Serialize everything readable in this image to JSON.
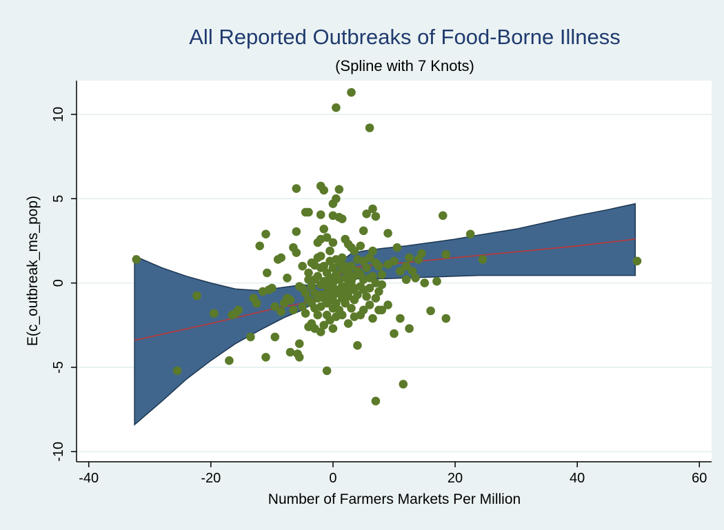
{
  "chart_data": {
    "type": "scatter",
    "title": "All Reported Outbreaks of Food-Borne Illness",
    "subtitle": "(Spline with 7 Knots)",
    "xlabel": "Number of Farmers Markets Per Million",
    "ylabel": "E(c_outbreak_ms_pop)",
    "xlim": [
      -42,
      62
    ],
    "ylim": [
      -10.6,
      12.0
    ],
    "xticks": [
      -40,
      -20,
      0,
      20,
      40,
      60
    ],
    "yticks": [
      -10,
      -5,
      0,
      5,
      10
    ],
    "grid": "horizontal",
    "colors": {
      "background": "#eaf2f3",
      "plot_background": "#ffffff",
      "grid": "#e9f1f2",
      "points": "#5b7a2a",
      "band_fill": "#40668e",
      "band_stroke": "#1c3650",
      "fit_line": "#b23a3a"
    },
    "confidence_band": {
      "x": [
        -32.5,
        -28,
        -24,
        -20,
        -16,
        -12,
        -8,
        -5,
        -3,
        -1,
        0,
        1,
        3,
        5,
        8,
        12,
        16,
        20,
        24,
        30,
        35,
        40,
        45,
        49.5
      ],
      "upper": [
        1.6,
        0.9,
        0.4,
        0.0,
        -0.35,
        -0.45,
        -0.25,
        -0.1,
        -0.15,
        0.1,
        0.6,
        1.2,
        1.75,
        1.9,
        2.05,
        2.2,
        2.4,
        2.6,
        2.85,
        3.2,
        3.6,
        4.0,
        4.35,
        4.7
      ],
      "lower": [
        -8.4,
        -7.0,
        -5.7,
        -4.6,
        -3.6,
        -2.8,
        -2.05,
        -1.6,
        -1.15,
        -0.6,
        -0.1,
        0.2,
        0.25,
        0.25,
        0.25,
        0.3,
        0.35,
        0.4,
        0.45,
        0.45,
        0.45,
        0.45,
        0.45,
        0.45
      ]
    },
    "fit_line": {
      "x": [
        -32.5,
        -20,
        -10,
        -5,
        -2,
        0,
        2,
        5,
        10,
        20,
        30,
        40,
        49.5
      ],
      "y": [
        -3.4,
        -2.4,
        -1.55,
        -1.2,
        -0.8,
        0.0,
        0.85,
        1.0,
        1.15,
        1.5,
        1.85,
        2.2,
        2.6
      ]
    },
    "points": [
      [
        -32.2,
        1.4
      ],
      [
        -25.5,
        -5.2
      ],
      [
        -22.3,
        -0.75
      ],
      [
        -19.5,
        -1.8
      ],
      [
        -17,
        -4.6
      ],
      [
        -16.5,
        -1.9
      ],
      [
        -16,
        -1.8
      ],
      [
        -15.5,
        -1.6
      ],
      [
        -13.5,
        -3.2
      ],
      [
        -13,
        -0.9
      ],
      [
        -12.5,
        -1.2
      ],
      [
        -12,
        2.2
      ],
      [
        -11.5,
        -0.5
      ],
      [
        -11,
        -4.4
      ],
      [
        -11,
        2.9
      ],
      [
        -10.8,
        0.6
      ],
      [
        -10.5,
        -0.4
      ],
      [
        -10,
        -0.3
      ],
      [
        -9.5,
        -1.4
      ],
      [
        -9.5,
        -3.2
      ],
      [
        -9,
        1.4
      ],
      [
        -8.5,
        1.5
      ],
      [
        -8.5,
        -1.7
      ],
      [
        -8,
        -1.2
      ],
      [
        -7.5,
        0.3
      ],
      [
        -7.5,
        -0.9
      ],
      [
        -7,
        -4.1
      ],
      [
        -7,
        -1.0
      ],
      [
        -6.5,
        2.1
      ],
      [
        -6.5,
        -1.6
      ],
      [
        -6,
        1.8
      ],
      [
        -6,
        3.05
      ],
      [
        -6,
        5.6
      ],
      [
        -5.8,
        -4.2
      ],
      [
        -5.5,
        -4.4
      ],
      [
        -5.5,
        -0.2
      ],
      [
        -5.5,
        -3.6
      ],
      [
        -5,
        1.0
      ],
      [
        -5,
        -0.3
      ],
      [
        -5,
        -1.4
      ],
      [
        -4.5,
        -0.6
      ],
      [
        -4.5,
        4.2
      ],
      [
        -4.5,
        -1.8
      ],
      [
        -4,
        4.2
      ],
      [
        -4,
        0.6
      ],
      [
        -4,
        0.2
      ],
      [
        -4,
        -1.0
      ],
      [
        -4,
        -2.6
      ],
      [
        -3.5,
        1.2
      ],
      [
        -3.5,
        -0.2
      ],
      [
        -3.5,
        -1.2
      ],
      [
        -3.5,
        -2.4
      ],
      [
        -3,
        1.05
      ],
      [
        -3,
        0.2
      ],
      [
        -3,
        -0.6
      ],
      [
        -3,
        -1.5
      ],
      [
        -3,
        -2.7
      ],
      [
        -2.5,
        1.5
      ],
      [
        -2.5,
        2.4
      ],
      [
        -2.5,
        0.4
      ],
      [
        -2.5,
        -0.9
      ],
      [
        -2.5,
        -1.9
      ],
      [
        -2,
        5.75
      ],
      [
        -2,
        2.6
      ],
      [
        -2,
        4.05
      ],
      [
        -2,
        1.6
      ],
      [
        -2,
        0.9
      ],
      [
        -2,
        -0.1
      ],
      [
        -2,
        -0.7
      ],
      [
        -2,
        -1.4
      ],
      [
        -2,
        -2.9
      ],
      [
        -1.5,
        5.5
      ],
      [
        -1.5,
        3.2
      ],
      [
        -1.5,
        1.0
      ],
      [
        -1.5,
        0.1
      ],
      [
        -1.5,
        -0.9
      ],
      [
        -1.5,
        -2.5
      ],
      [
        -1,
        2.7
      ],
      [
        -1,
        0.6
      ],
      [
        -1,
        -0.2
      ],
      [
        -1,
        -0.6
      ],
      [
        -1,
        -1.2
      ],
      [
        -1,
        -1.9
      ],
      [
        -1,
        -5.2
      ],
      [
        -0.5,
        1.9
      ],
      [
        -0.5,
        1.3
      ],
      [
        -0.5,
        0.3
      ],
      [
        -0.5,
        -0.5
      ],
      [
        -0.5,
        -1.0
      ],
      [
        -0.5,
        -2.2
      ],
      [
        0,
        4.7
      ],
      [
        0,
        4.0
      ],
      [
        0,
        2.4
      ],
      [
        0,
        0.9
      ],
      [
        0,
        0.0
      ],
      [
        0,
        -0.3
      ],
      [
        0,
        -0.8
      ],
      [
        0,
        -1.5
      ],
      [
        0,
        -2.7
      ],
      [
        0.5,
        10.4
      ],
      [
        0.5,
        5.0
      ],
      [
        0.5,
        1.4
      ],
      [
        0.5,
        0.5
      ],
      [
        0.5,
        -0.4
      ],
      [
        0.5,
        -1.2
      ],
      [
        0.5,
        -2.0
      ],
      [
        1,
        5.55
      ],
      [
        1,
        3.9
      ],
      [
        1,
        1.2
      ],
      [
        1,
        0.2
      ],
      [
        1,
        -0.6
      ],
      [
        1,
        -1.6
      ],
      [
        1.5,
        3.8
      ],
      [
        1.5,
        1.5
      ],
      [
        1.5,
        0.8
      ],
      [
        1.5,
        -0.2
      ],
      [
        1.5,
        -0.9
      ],
      [
        1.5,
        -1.9
      ],
      [
        2,
        2.6
      ],
      [
        2,
        1.0
      ],
      [
        2,
        0.3
      ],
      [
        2,
        -0.5
      ],
      [
        2,
        -1.2
      ],
      [
        2.5,
        2.3
      ],
      [
        2.5,
        0.6
      ],
      [
        2.5,
        -0.1
      ],
      [
        2.5,
        -0.8
      ],
      [
        2.5,
        -2.4
      ],
      [
        3,
        11.3
      ],
      [
        3,
        2.1
      ],
      [
        3,
        1.0
      ],
      [
        3,
        0.1
      ],
      [
        3,
        -0.4
      ],
      [
        3,
        -1.5
      ],
      [
        3.5,
        1.9
      ],
      [
        3.5,
        0.4
      ],
      [
        3.5,
        -0.3
      ],
      [
        3.5,
        -1.0
      ],
      [
        3.5,
        -2.0
      ],
      [
        4,
        1.4
      ],
      [
        4,
        0.7
      ],
      [
        4,
        -0.7
      ],
      [
        4,
        -3.7
      ],
      [
        4.5,
        2.2
      ],
      [
        4.5,
        0.5
      ],
      [
        4.5,
        -0.2
      ],
      [
        4.5,
        -1.9
      ],
      [
        5,
        3.1
      ],
      [
        5,
        1.3
      ],
      [
        5,
        0.2
      ],
      [
        5,
        -0.4
      ],
      [
        5,
        -1.6
      ],
      [
        5.5,
        4.1
      ],
      [
        5.5,
        0.9
      ],
      [
        5.5,
        -0.8
      ],
      [
        6,
        9.2
      ],
      [
        6,
        1.5
      ],
      [
        6,
        0.3
      ],
      [
        6,
        -0.3
      ],
      [
        6,
        -1.3
      ],
      [
        6.5,
        4.4
      ],
      [
        6.5,
        1.9
      ],
      [
        6.5,
        0.4
      ],
      [
        6.5,
        -2.1
      ],
      [
        7,
        3.95
      ],
      [
        7,
        1.2
      ],
      [
        7,
        0.0
      ],
      [
        7,
        -0.9
      ],
      [
        7,
        -7.0
      ],
      [
        7.5,
        1.0
      ],
      [
        7.5,
        -0.5
      ],
      [
        7.5,
        -1.6
      ],
      [
        8,
        0.5
      ],
      [
        8,
        -0.1
      ],
      [
        8,
        -1.6
      ],
      [
        9,
        2.95
      ],
      [
        9,
        1.1
      ],
      [
        9,
        -1.3
      ],
      [
        10,
        1.3
      ],
      [
        10,
        -3.0
      ],
      [
        10.5,
        2.1
      ],
      [
        11,
        0.7
      ],
      [
        11,
        -2.1
      ],
      [
        11.5,
        -6.0
      ],
      [
        12,
        1.0
      ],
      [
        12,
        0.2
      ],
      [
        12.5,
        1.5
      ],
      [
        12.5,
        -2.7
      ],
      [
        13,
        0.7
      ],
      [
        13.5,
        0.3
      ],
      [
        14,
        1.4
      ],
      [
        14.5,
        1.75
      ],
      [
        15,
        0.0
      ],
      [
        16,
        -1.65
      ],
      [
        17,
        0.1
      ],
      [
        18,
        4.0
      ],
      [
        18.5,
        1.7
      ],
      [
        18.5,
        -2.1
      ],
      [
        22.5,
        2.9
      ],
      [
        24.5,
        1.4
      ],
      [
        49.8,
        1.3
      ]
    ]
  }
}
